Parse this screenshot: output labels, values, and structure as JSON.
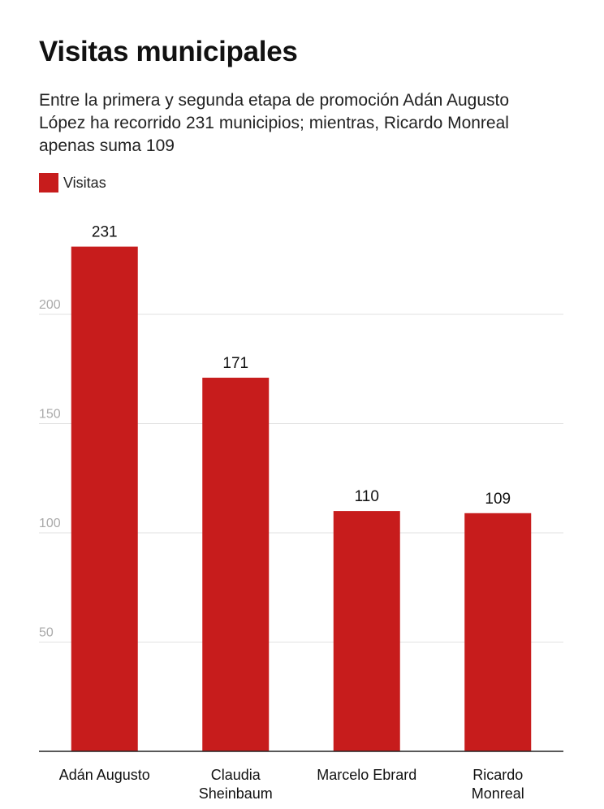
{
  "title": "Visitas municipales",
  "subtitle": "Entre la primera y segunda etapa de promoción Adán Augusto López ha recorrido 231 municipios; mientras, Ricardo Monreal apenas suma 109",
  "colors": {
    "bar": "#c71c1c",
    "grid": "#e2e2e2",
    "axis": "#222222"
  },
  "chart_data": {
    "type": "bar",
    "categories": [
      "Adán Augusto",
      "Claudia Sheinbaum",
      "Marcelo Ebrard",
      "Ricardo Monreal"
    ],
    "series": [
      {
        "name": "Visitas",
        "values": [
          231,
          171,
          110,
          109
        ]
      }
    ],
    "yticks": [
      50,
      100,
      150,
      200
    ],
    "ylim": [
      0,
      250
    ],
    "grid": true,
    "legend_position": "top-left"
  }
}
